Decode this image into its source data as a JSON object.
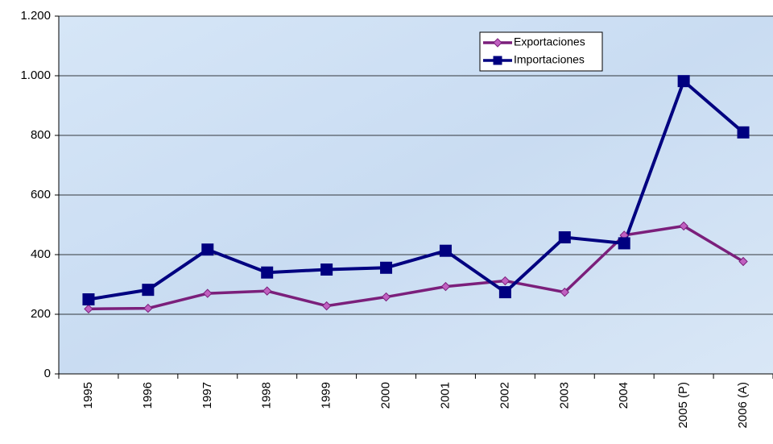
{
  "chart_data": {
    "type": "line",
    "categories": [
      "1995",
      "1996",
      "1997",
      "1998",
      "1999",
      "2000",
      "2001",
      "2002",
      "2003",
      "2004",
      "2005 (P)",
      "2006 (A)"
    ],
    "series": [
      {
        "name": "Exportaciones",
        "color": "#7b1f7b",
        "marker": "diamond",
        "marker_color": "#c060c0",
        "values": [
          218,
          220,
          270,
          278,
          228,
          258,
          293,
          312,
          274,
          465,
          496,
          377
        ]
      },
      {
        "name": "Importaciones",
        "color": "#000080",
        "marker": "square",
        "marker_color": "#000080",
        "values": [
          250,
          282,
          417,
          340,
          350,
          356,
          413,
          274,
          458,
          438,
          982,
          810
        ]
      }
    ],
    "ylim": [
      0,
      1200
    ],
    "yticks": [
      0,
      200,
      400,
      600,
      800,
      {
        "value": 1000,
        "label": "1.000"
      },
      {
        "value": 1200,
        "label": "1.200"
      }
    ],
    "grid": true,
    "legend": "upper right"
  }
}
